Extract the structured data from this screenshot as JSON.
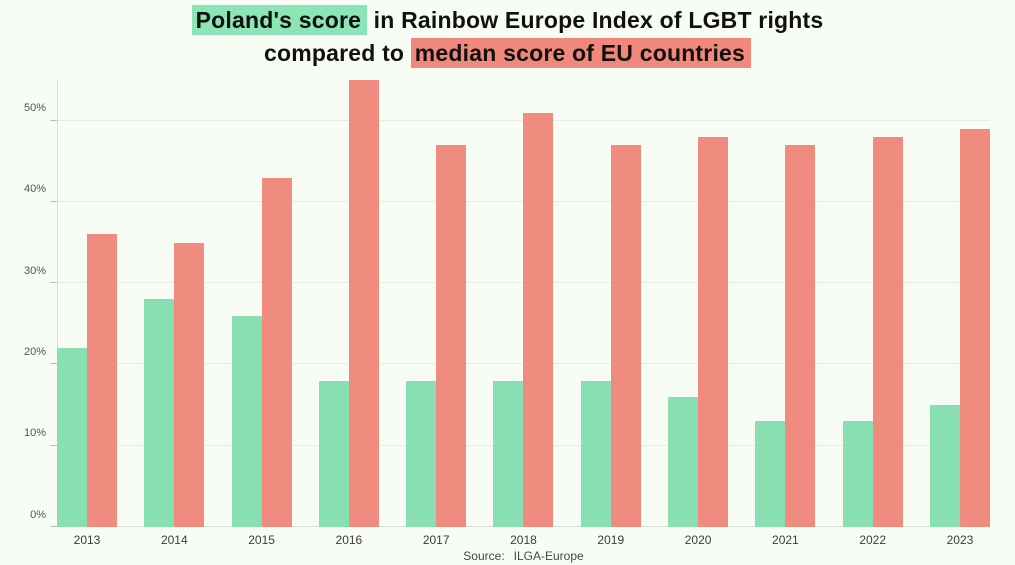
{
  "title": {
    "line1_highlight": "Poland's score",
    "line1_rest": " in Rainbow Europe Index of LGBT rights",
    "line2_prefix": "compared to ",
    "line2_highlight": "median score of EU countries"
  },
  "source": {
    "label": "Source:",
    "value": "ILGA-Europe"
  },
  "colors": {
    "background": "#f7fdf5",
    "poland_bar": "#87dfb2",
    "eu_median_bar": "#f08c7f",
    "title_highlight_green": "#8ce5b5",
    "title_highlight_red": "#f0897c",
    "gridline": "#e7ebe4",
    "axis_line": "#d7dcd4"
  },
  "chart_data": {
    "type": "bar",
    "title": "Poland's score in Rainbow Europe Index of LGBT rights compared to median score of EU countries",
    "categories": [
      "2013",
      "2014",
      "2015",
      "2016",
      "2017",
      "2018",
      "2019",
      "2020",
      "2021",
      "2022",
      "2023"
    ],
    "series": [
      {
        "name": "Poland's score",
        "color": "#87dfb2",
        "values": [
          22,
          28,
          26,
          18,
          18,
          18,
          18,
          16,
          13,
          13,
          15
        ]
      },
      {
        "name": "Median score of EU countries",
        "color": "#f08c7f",
        "values": [
          36,
          35,
          43,
          55,
          47,
          51,
          47,
          48,
          47,
          48,
          49
        ]
      }
    ],
    "xlabel": "",
    "ylabel": "",
    "y_ticks": [
      0,
      10,
      20,
      30,
      40,
      50
    ],
    "y_tick_labels": [
      "0%",
      "10%",
      "20%",
      "30%",
      "40%",
      "50%"
    ],
    "ylim": [
      0,
      55
    ],
    "unit": "%",
    "grid": true,
    "legend_position": "none (highlighted title words act as legend)"
  }
}
